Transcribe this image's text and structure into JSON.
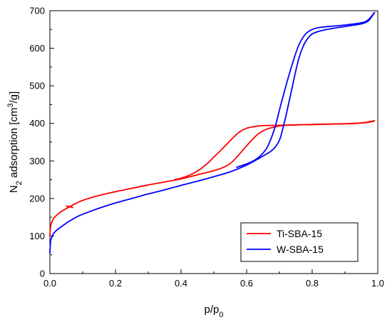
{
  "chart_data": {
    "type": "line",
    "xlabel_main": "p/p",
    "xlabel_sub": "0",
    "ylabel_main": "N",
    "ylabel_sub": "2",
    "ylabel_mid": " adsorption [cm",
    "ylabel_sup": "3",
    "ylabel_end": "/g]",
    "xlim": [
      0.0,
      1.0
    ],
    "ylim": [
      0,
      700
    ],
    "x_ticks": [
      "0.0",
      "0.2",
      "0.4",
      "0.6",
      "0.8",
      "1.0"
    ],
    "y_ticks": [
      "0",
      "100",
      "200",
      "300",
      "400",
      "500",
      "600",
      "700"
    ],
    "legend_position": "bottom-right",
    "series": [
      {
        "name": "Ti-SBA-15",
        "color": "#ff0000",
        "adsorption": {
          "x": [
            0.0,
            0.002,
            0.005,
            0.01,
            0.02,
            0.04,
            0.06,
            0.08,
            0.1,
            0.15,
            0.2,
            0.25,
            0.3,
            0.35,
            0.4,
            0.45,
            0.5,
            0.53,
            0.55,
            0.57,
            0.59,
            0.61,
            0.63,
            0.65,
            0.67,
            0.69,
            0.7,
            0.72,
            0.75,
            0.8,
            0.85,
            0.9,
            0.95,
            0.98,
            0.99
          ],
          "y": [
            100,
            125,
            135,
            145,
            155,
            168,
            178,
            187,
            195,
            208,
            218,
            227,
            236,
            244,
            252,
            263,
            274,
            283,
            293,
            310,
            330,
            350,
            368,
            380,
            387,
            391,
            393,
            395,
            396,
            397,
            398,
            399,
            401,
            404,
            407
          ]
        },
        "desorption": {
          "x": [
            0.99,
            0.95,
            0.9,
            0.8,
            0.75,
            0.7,
            0.65,
            0.62,
            0.6,
            0.58,
            0.56,
            0.54,
            0.52,
            0.5,
            0.48,
            0.46,
            0.44,
            0.42,
            0.4,
            0.38
          ],
          "y": [
            407,
            401,
            399,
            397,
            396,
            395,
            394,
            391,
            387,
            378,
            363,
            345,
            327,
            310,
            293,
            279,
            268,
            260,
            254,
            250
          ]
        },
        "desorption_start": {
          "x": [
            0.05,
            0.07
          ],
          "y": [
            180,
            176
          ]
        }
      },
      {
        "name": "W-SBA-15",
        "color": "#0000ff",
        "adsorption": {
          "x": [
            0.0,
            0.002,
            0.005,
            0.01,
            0.02,
            0.04,
            0.06,
            0.08,
            0.1,
            0.15,
            0.2,
            0.25,
            0.3,
            0.35,
            0.4,
            0.45,
            0.5,
            0.55,
            0.6,
            0.65,
            0.68,
            0.7,
            0.71,
            0.72,
            0.73,
            0.74,
            0.75,
            0.76,
            0.77,
            0.78,
            0.79,
            0.8,
            0.82,
            0.85,
            0.9,
            0.95,
            0.97,
            0.98,
            0.99
          ],
          "y": [
            55,
            85,
            95,
            105,
            115,
            128,
            140,
            150,
            158,
            174,
            188,
            200,
            212,
            223,
            235,
            246,
            258,
            271,
            289,
            313,
            330,
            355,
            385,
            420,
            460,
            500,
            540,
            575,
            600,
            618,
            630,
            638,
            645,
            651,
            658,
            665,
            672,
            682,
            695
          ]
        },
        "desorption": {
          "x": [
            0.99,
            0.97,
            0.95,
            0.9,
            0.85,
            0.82,
            0.8,
            0.78,
            0.76,
            0.74,
            0.72,
            0.7,
            0.69,
            0.68,
            0.67,
            0.66,
            0.64,
            0.62,
            0.6,
            0.57
          ],
          "y": [
            695,
            675,
            668,
            662,
            658,
            655,
            650,
            638,
            610,
            560,
            500,
            435,
            400,
            372,
            350,
            332,
            312,
            300,
            292,
            283
          ]
        }
      }
    ]
  }
}
